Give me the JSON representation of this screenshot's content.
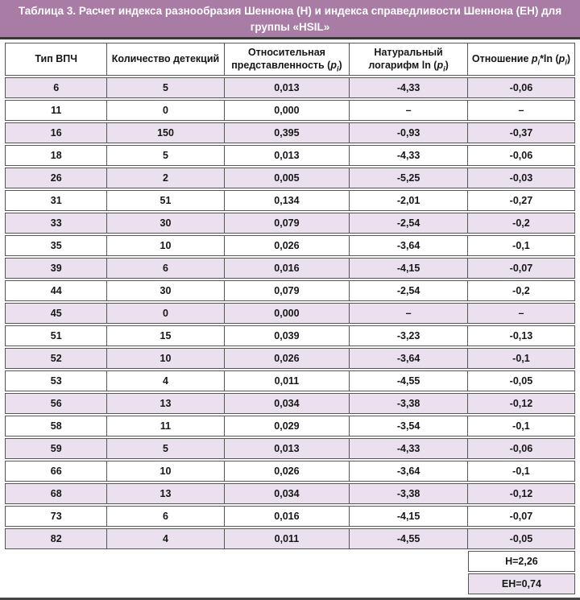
{
  "title": {
    "line1": "Таблица 3. Расчет индекса разнообразия Шеннона (H) и индекса справедливости Шеннона (EH) для",
    "line2": "группы «HSIL»"
  },
  "columns": {
    "c1": "Тип ВПЧ",
    "c2": "Количество детекций",
    "c3_pre": "Относительная представленность (",
    "c4_pre": "Натуральный логарифм ln (",
    "c5_pre": "Отношение ",
    "c5_mid": "*ln (",
    "p_var": "p",
    "sub_i": "i",
    "close_paren": ")"
  },
  "rows": [
    {
      "type": "6",
      "detections": "5",
      "p": "0,013",
      "ln": "-4,33",
      "product": "-0,06"
    },
    {
      "type": "11",
      "detections": "0",
      "p": "0,000",
      "ln": "–",
      "product": "–"
    },
    {
      "type": "16",
      "detections": "150",
      "p": "0,395",
      "ln": "-0,93",
      "product": "-0,37"
    },
    {
      "type": "18",
      "detections": "5",
      "p": "0,013",
      "ln": "-4,33",
      "product": "-0,06"
    },
    {
      "type": "26",
      "detections": "2",
      "p": "0,005",
      "ln": "-5,25",
      "product": "-0,03"
    },
    {
      "type": "31",
      "detections": "51",
      "p": "0,134",
      "ln": "-2,01",
      "product": "-0,27"
    },
    {
      "type": "33",
      "detections": "30",
      "p": "0,079",
      "ln": "-2,54",
      "product": "-0,2"
    },
    {
      "type": "35",
      "detections": "10",
      "p": "0,026",
      "ln": "-3,64",
      "product": "-0,1"
    },
    {
      "type": "39",
      "detections": "6",
      "p": "0,016",
      "ln": "-4,15",
      "product": "-0,07"
    },
    {
      "type": "44",
      "detections": "30",
      "p": "0,079",
      "ln": "-2,54",
      "product": "-0,2"
    },
    {
      "type": "45",
      "detections": "0",
      "p": "0,000",
      "ln": "–",
      "product": "–"
    },
    {
      "type": "51",
      "detections": "15",
      "p": "0,039",
      "ln": "-3,23",
      "product": "-0,13"
    },
    {
      "type": "52",
      "detections": "10",
      "p": "0,026",
      "ln": "-3,64",
      "product": "-0,1"
    },
    {
      "type": "53",
      "detections": "4",
      "p": "0,011",
      "ln": "-4,55",
      "product": "-0,05"
    },
    {
      "type": "56",
      "detections": "13",
      "p": "0,034",
      "ln": "-3,38",
      "product": "-0,12"
    },
    {
      "type": "58",
      "detections": "11",
      "p": "0,029",
      "ln": "-3,54",
      "product": "-0,1"
    },
    {
      "type": "59",
      "detections": "5",
      "p": "0,013",
      "ln": "-4,33",
      "product": "-0,06"
    },
    {
      "type": "66",
      "detections": "10",
      "p": "0,026",
      "ln": "-3,64",
      "product": "-0,1"
    },
    {
      "type": "68",
      "detections": "13",
      "p": "0,034",
      "ln": "-3,38",
      "product": "-0,12"
    },
    {
      "type": "73",
      "detections": "6",
      "p": "0,016",
      "ln": "-4,15",
      "product": "-0,07"
    },
    {
      "type": "82",
      "detections": "4",
      "p": "0,011",
      "ln": "-4,55",
      "product": "-0,05"
    }
  ],
  "summary": {
    "h": "H=2,26",
    "eh": "EH=0,74"
  },
  "colors": {
    "band": "#a87ca4",
    "stripe": "#ebe1ee",
    "border": "#555555",
    "rule": "#454545"
  }
}
